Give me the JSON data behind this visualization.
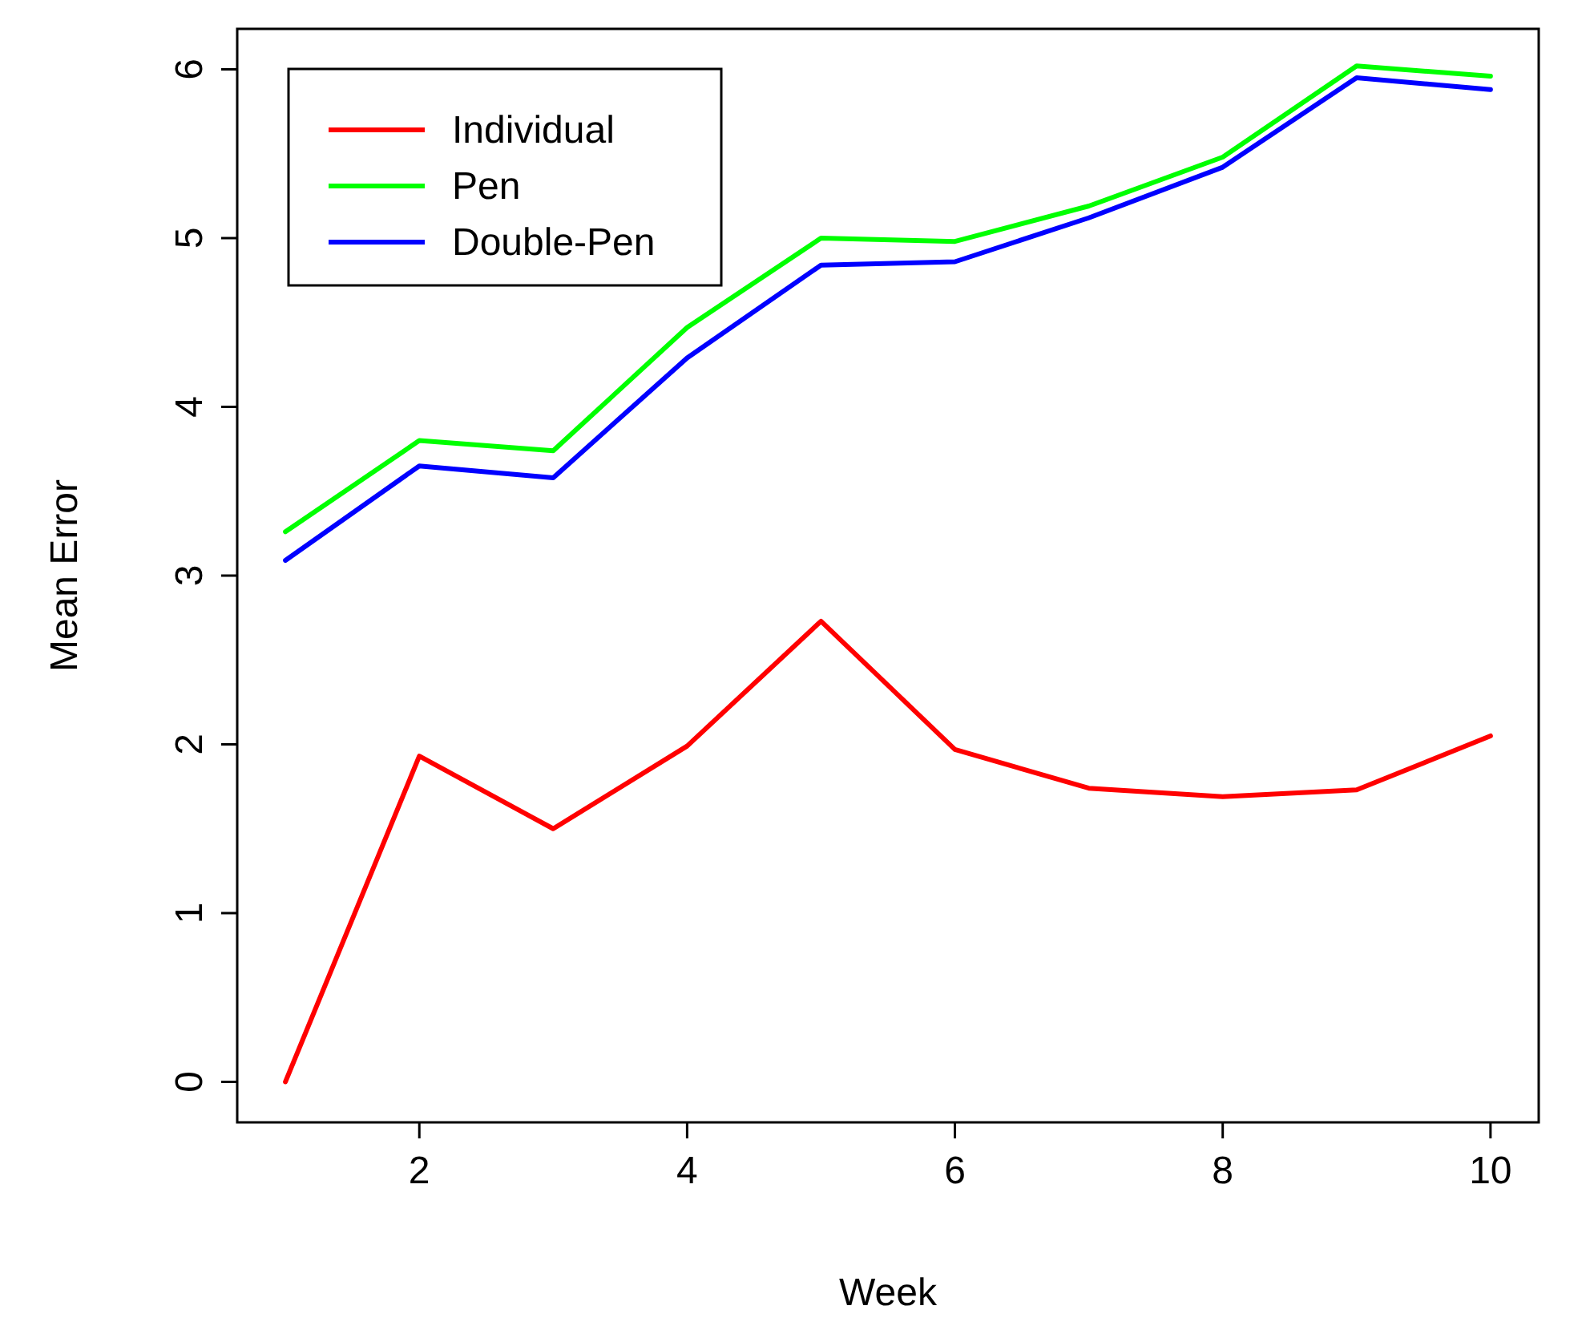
{
  "chart_data": {
    "type": "line",
    "xlabel": "Week",
    "ylabel": "Mean Error",
    "x": [
      1,
      2,
      3,
      4,
      5,
      6,
      7,
      8,
      9,
      10
    ],
    "series": [
      {
        "name": "Individual",
        "color": "#ff0000",
        "values": [
          0,
          1.93,
          1.5,
          1.99,
          2.73,
          1.97,
          1.74,
          1.69,
          1.73,
          2.05
        ]
      },
      {
        "name": "Pen",
        "color": "#00ff00",
        "values": [
          3.26,
          3.8,
          3.74,
          4.47,
          5.0,
          4.98,
          5.19,
          5.48,
          6.02,
          5.96
        ]
      },
      {
        "name": "Double-Pen",
        "color": "#0000ff",
        "values": [
          3.09,
          3.65,
          3.58,
          4.29,
          4.84,
          4.86,
          5.12,
          5.42,
          5.95,
          5.88
        ]
      }
    ],
    "xlim": [
      0.64,
      10.36
    ],
    "xticks": [
      2,
      4,
      6,
      8,
      10
    ],
    "ylim": [
      -0.24,
      6.24
    ],
    "yticks": [
      0,
      1,
      2,
      3,
      4,
      5,
      6
    ],
    "legend": "top left",
    "grid": false,
    "marker": "none",
    "line_style": "solid"
  }
}
